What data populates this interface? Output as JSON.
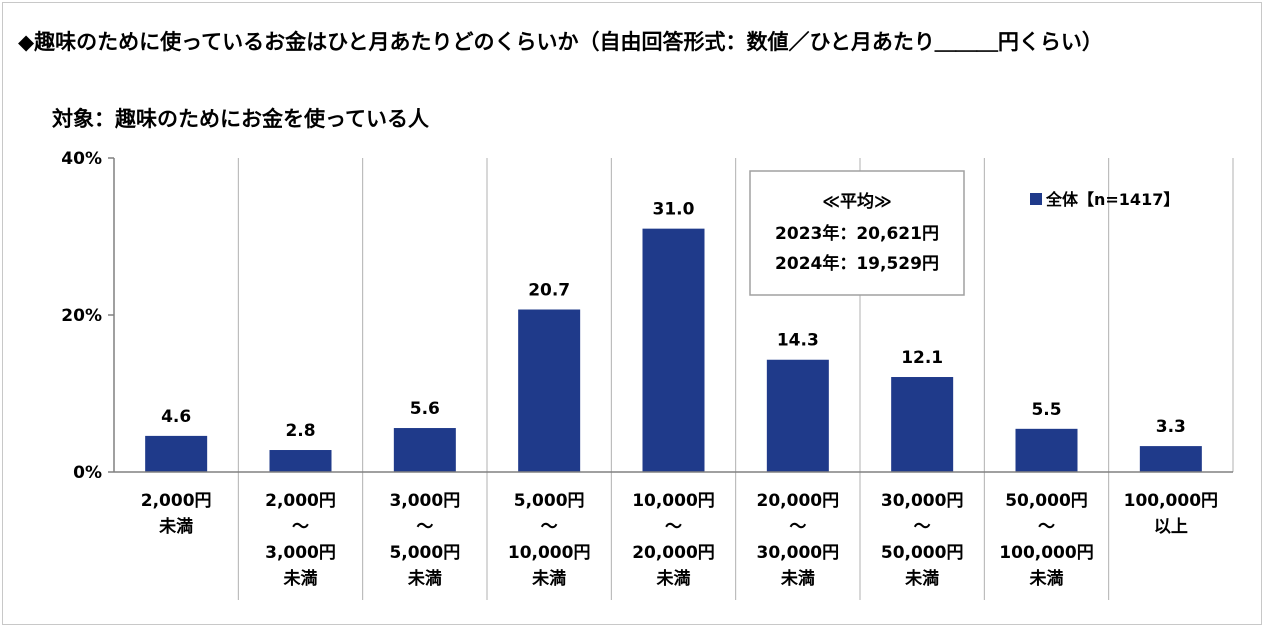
{
  "title": "◆趣味のために使っているお金はひと月あたりどのくらいか（自由回答形式：数値／ひと月あたり＿＿＿円くらい）",
  "subtitle": "対象：趣味のためにお金を使っている人",
  "chart_data": {
    "type": "bar",
    "title": "◆趣味のために使っているお金はひと月あたりどのくらいか（自由回答形式：数値／ひと月あたり＿＿＿円くらい）",
    "subtitle": "対象：趣味のためにお金を使っている人",
    "categories": [
      [
        "2,000円",
        "未満"
      ],
      [
        "2,000円",
        "～",
        "3,000円",
        "未満"
      ],
      [
        "3,000円",
        "～",
        "5,000円",
        "未満"
      ],
      [
        "5,000円",
        "～",
        "10,000円",
        "未満"
      ],
      [
        "10,000円",
        "～",
        "20,000円",
        "未満"
      ],
      [
        "20,000円",
        "～",
        "30,000円",
        "未満"
      ],
      [
        "30,000円",
        "～",
        "50,000円",
        "未満"
      ],
      [
        "50,000円",
        "～",
        "100,000円",
        "未満"
      ],
      [
        "100,000円",
        "以上"
      ]
    ],
    "series": [
      {
        "name": "全体【n=1417】",
        "values": [
          4.6,
          2.8,
          5.6,
          20.7,
          31.0,
          14.3,
          12.1,
          5.5,
          3.3
        ]
      }
    ],
    "value_labels": [
      "4.6",
      "2.8",
      "5.6",
      "20.7",
      "31.0",
      "14.3",
      "12.1",
      "5.5",
      "3.3"
    ],
    "ylim": [
      0,
      40
    ],
    "yticks": [
      0,
      20,
      40
    ],
    "ytick_labels": [
      "0%",
      "20%",
      "40%"
    ],
    "xlabel": "",
    "ylabel": "",
    "grid": "vertical category separators",
    "legend_placement": "top-right",
    "bar_color": "#1f3a8a",
    "average_box": {
      "heading": "≪平均≫",
      "lines": [
        "2023年：20,621円",
        "2024年：19,529円"
      ]
    }
  }
}
